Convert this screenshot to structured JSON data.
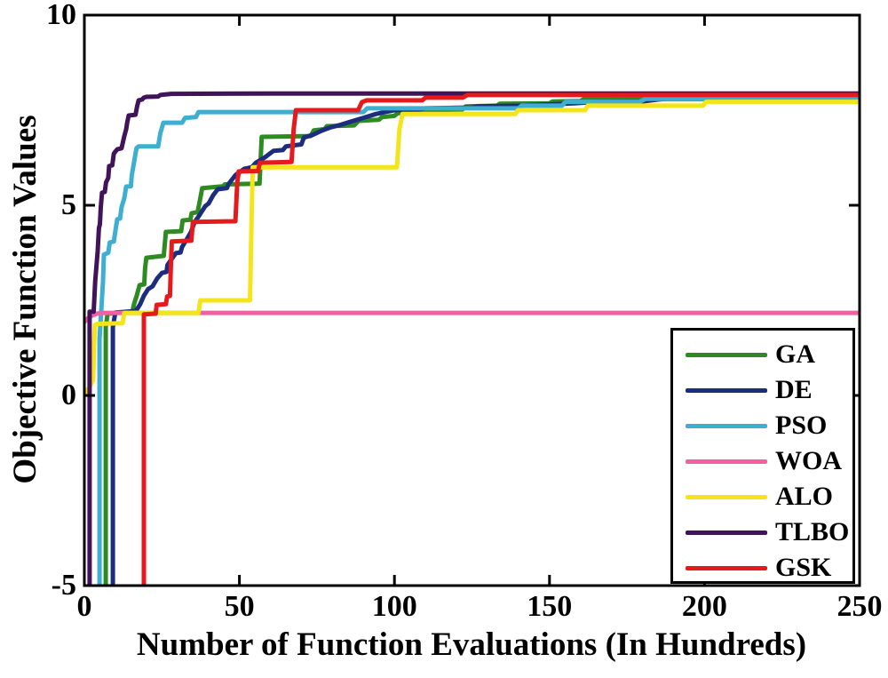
{
  "figure": {
    "background": "#ffffff",
    "axis_color": "#000000"
  },
  "chart_data": {
    "type": "line",
    "title": "",
    "xlabel": "Number of Function Evaluations (In Hundreds)",
    "ylabel": "Objective Function Values",
    "xlim": [
      0,
      250
    ],
    "ylim": [
      -5,
      10
    ],
    "x_ticks": [
      0,
      50,
      100,
      150,
      200,
      250
    ],
    "y_ticks": [
      10,
      5,
      0,
      -5
    ],
    "grid": false,
    "legend_position": "bottom-right",
    "line_width": 5,
    "series": [
      {
        "name": "GA",
        "color": "#2e8b22",
        "points": [
          [
            6.9,
            -5
          ],
          [
            6.9,
            1.8
          ],
          [
            7.5,
            2.15
          ],
          [
            15.5,
            2.2
          ],
          [
            16,
            2.4
          ],
          [
            16.8,
            2.6
          ],
          [
            17.8,
            2.9
          ],
          [
            19.3,
            2.92
          ],
          [
            19.6,
            3.35
          ],
          [
            20,
            3.62
          ],
          [
            25.6,
            3.67
          ],
          [
            26.3,
            4.3
          ],
          [
            31.2,
            4.32
          ],
          [
            31.7,
            4.6
          ],
          [
            34.2,
            4.62
          ],
          [
            34.6,
            4.79
          ],
          [
            36.5,
            4.82
          ],
          [
            37.2,
            5.1
          ],
          [
            38,
            5.45
          ],
          [
            44.8,
            5.5
          ],
          [
            45.3,
            5.55
          ],
          [
            56.5,
            5.57
          ],
          [
            57.2,
            6.8
          ],
          [
            73,
            6.82
          ],
          [
            74,
            6.97
          ],
          [
            77.5,
            7.0
          ],
          [
            78.2,
            7.08
          ],
          [
            87,
            7.1
          ],
          [
            88.5,
            7.22
          ],
          [
            95,
            7.25
          ],
          [
            96,
            7.32
          ],
          [
            100,
            7.35
          ],
          [
            101,
            7.42
          ],
          [
            110,
            7.44
          ],
          [
            111,
            7.5
          ],
          [
            122,
            7.52
          ],
          [
            123,
            7.6
          ],
          [
            133,
            7.62
          ],
          [
            134,
            7.67
          ],
          [
            150,
            7.68
          ],
          [
            151,
            7.73
          ],
          [
            160,
            7.74
          ],
          [
            161,
            7.79
          ],
          [
            250,
            7.79
          ]
        ]
      },
      {
        "name": "DE",
        "color": "#1d2d7e",
        "points": [
          [
            9.2,
            -5
          ],
          [
            9.2,
            1.8
          ],
          [
            10,
            2.18
          ],
          [
            16.6,
            2.22
          ],
          [
            18,
            2.4
          ],
          [
            19.2,
            2.62
          ],
          [
            20.6,
            2.8
          ],
          [
            22,
            2.87
          ],
          [
            23.5,
            3.08
          ],
          [
            25,
            3.22
          ],
          [
            26.5,
            3.25
          ],
          [
            26.8,
            3.43
          ],
          [
            28.1,
            3.58
          ],
          [
            29.5,
            3.74
          ],
          [
            31,
            3.76
          ],
          [
            31.5,
            3.9
          ],
          [
            33,
            4.1
          ],
          [
            34.4,
            4.3
          ],
          [
            35.5,
            4.55
          ],
          [
            37.2,
            4.75
          ],
          [
            39,
            4.98
          ],
          [
            40.1,
            5.05
          ],
          [
            41.5,
            5.26
          ],
          [
            43,
            5.42
          ],
          [
            46,
            5.45
          ],
          [
            46.5,
            5.56
          ],
          [
            48.7,
            5.79
          ],
          [
            51.6,
            5.96
          ],
          [
            54,
            6.0
          ],
          [
            55.3,
            6.12
          ],
          [
            58.2,
            6.26
          ],
          [
            61,
            6.43
          ],
          [
            64,
            6.45
          ],
          [
            65,
            6.55
          ],
          [
            70,
            6.6
          ],
          [
            70.8,
            6.78
          ],
          [
            73.6,
            6.85
          ],
          [
            76.5,
            6.96
          ],
          [
            79.4,
            7.05
          ],
          [
            82,
            7.1
          ],
          [
            86,
            7.2
          ],
          [
            90,
            7.3
          ],
          [
            94,
            7.4
          ],
          [
            97,
            7.45
          ],
          [
            100,
            7.5
          ],
          [
            108,
            7.52
          ],
          [
            110,
            7.55
          ],
          [
            125,
            7.57
          ],
          [
            127,
            7.6
          ],
          [
            140,
            7.62
          ],
          [
            148,
            7.65
          ],
          [
            158,
            7.68
          ],
          [
            165,
            7.72
          ],
          [
            180,
            7.73
          ],
          [
            185,
            7.78
          ],
          [
            190,
            7.82
          ],
          [
            250,
            7.82
          ]
        ]
      },
      {
        "name": "PSO",
        "color": "#3fafd1",
        "points": [
          [
            4.9,
            -5
          ],
          [
            4.9,
            1.5
          ],
          [
            5.5,
            2.3
          ],
          [
            6,
            3.0
          ],
          [
            6.3,
            3.7
          ],
          [
            7.7,
            3.75
          ],
          [
            8.2,
            4.02
          ],
          [
            9.5,
            4.05
          ],
          [
            10,
            4.32
          ],
          [
            10.6,
            4.63
          ],
          [
            11.5,
            4.65
          ],
          [
            12,
            4.95
          ],
          [
            12.9,
            5.19
          ],
          [
            13.5,
            5.49
          ],
          [
            15,
            5.5
          ],
          [
            15.3,
            5.79
          ],
          [
            15.8,
            6.03
          ],
          [
            16.3,
            6.26
          ],
          [
            16.8,
            6.5
          ],
          [
            17.5,
            6.55
          ],
          [
            23.8,
            6.55
          ],
          [
            24.5,
            6.9
          ],
          [
            25.5,
            7.17
          ],
          [
            31.5,
            7.17
          ],
          [
            32.5,
            7.3
          ],
          [
            36,
            7.32
          ],
          [
            36.8,
            7.45
          ],
          [
            90,
            7.45
          ],
          [
            91.2,
            7.55
          ],
          [
            140,
            7.55
          ],
          [
            141,
            7.62
          ],
          [
            154,
            7.62
          ],
          [
            155.2,
            7.72
          ],
          [
            179,
            7.72
          ],
          [
            181,
            7.8
          ],
          [
            250,
            7.8
          ]
        ]
      },
      {
        "name": "WOA",
        "color": "#ef61a1",
        "points": [
          [
            0,
            1.93
          ],
          [
            1,
            2.02
          ],
          [
            2.5,
            2.1
          ],
          [
            4,
            2.15
          ],
          [
            6,
            2.17
          ],
          [
            250,
            2.17
          ]
        ]
      },
      {
        "name": "ALO",
        "color": "#f3e41c",
        "points": [
          [
            0,
            0.05
          ],
          [
            1.5,
            0.2
          ],
          [
            2.8,
            0.4
          ],
          [
            3.1,
            1.3
          ],
          [
            3.4,
            1.85
          ],
          [
            4,
            1.88
          ],
          [
            12.3,
            1.9
          ],
          [
            12.9,
            2.17
          ],
          [
            36.8,
            2.17
          ],
          [
            37.4,
            2.5
          ],
          [
            53.4,
            2.5
          ],
          [
            53.9,
            4.5
          ],
          [
            54.3,
            6.0
          ],
          [
            100.8,
            6.0
          ],
          [
            101.6,
            7.0
          ],
          [
            102.6,
            7.4
          ],
          [
            139,
            7.4
          ],
          [
            139.8,
            7.5
          ],
          [
            161.5,
            7.5
          ],
          [
            162.3,
            7.62
          ],
          [
            199.5,
            7.62
          ],
          [
            200.5,
            7.72
          ],
          [
            250,
            7.72
          ]
        ]
      },
      {
        "name": "TLBO",
        "color": "#411359",
        "points": [
          [
            1.7,
            -5
          ],
          [
            1.7,
            2.2
          ],
          [
            3,
            2.2
          ],
          [
            3.5,
            3.0
          ],
          [
            4.3,
            3.8
          ],
          [
            4.7,
            4.4
          ],
          [
            5,
            4.5
          ],
          [
            5.3,
            4.95
          ],
          [
            5.7,
            5.33
          ],
          [
            6.6,
            5.35
          ],
          [
            7,
            5.6
          ],
          [
            7.7,
            5.72
          ],
          [
            8,
            6.03
          ],
          [
            9,
            6.05
          ],
          [
            9.5,
            6.36
          ],
          [
            10.6,
            6.47
          ],
          [
            12,
            6.5
          ],
          [
            12.9,
            6.82
          ],
          [
            13.5,
            7.0
          ],
          [
            13.8,
            7.17
          ],
          [
            14.3,
            7.36
          ],
          [
            16.5,
            7.38
          ],
          [
            17,
            7.6
          ],
          [
            17.5,
            7.76
          ],
          [
            18.6,
            7.78
          ],
          [
            19.2,
            7.83
          ],
          [
            20,
            7.85
          ],
          [
            23.8,
            7.86
          ],
          [
            24.5,
            7.9
          ],
          [
            28,
            7.93
          ],
          [
            60,
            7.94
          ],
          [
            250,
            7.94
          ]
        ]
      },
      {
        "name": "GSK",
        "color": "#e6191c",
        "points": [
          [
            19.2,
            -5
          ],
          [
            19.2,
            2.13
          ],
          [
            23,
            2.15
          ],
          [
            23.3,
            2.38
          ],
          [
            26.3,
            2.4
          ],
          [
            26.7,
            2.6
          ],
          [
            27.6,
            2.62
          ],
          [
            27.9,
            3.4
          ],
          [
            28.2,
            4.05
          ],
          [
            34.5,
            4.07
          ],
          [
            35,
            4.56
          ],
          [
            48.7,
            4.58
          ],
          [
            49.3,
            5.6
          ],
          [
            49.8,
            5.89
          ],
          [
            56,
            5.9
          ],
          [
            56.6,
            6.12
          ],
          [
            66.8,
            6.14
          ],
          [
            67.5,
            7.0
          ],
          [
            68.2,
            7.5
          ],
          [
            88.3,
            7.5
          ],
          [
            89.5,
            7.71
          ],
          [
            91,
            7.76
          ],
          [
            109,
            7.76
          ],
          [
            110,
            7.83
          ],
          [
            122,
            7.83
          ],
          [
            123.5,
            7.9
          ],
          [
            250,
            7.9
          ]
        ]
      }
    ]
  },
  "legend": {
    "items": [
      "GA",
      "DE",
      "PSO",
      "WOA",
      "ALO",
      "TLBO",
      "GSK"
    ]
  }
}
